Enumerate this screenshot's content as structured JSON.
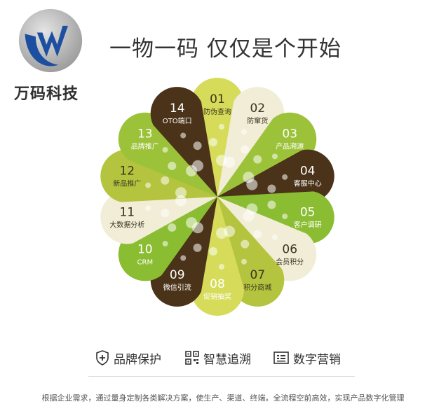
{
  "brand": {
    "name": "万码科技",
    "logo_icon": "wm-logo-icon"
  },
  "headline": "一物一码 仅仅是个开始",
  "petals": [
    {
      "num": "01",
      "label": "防伪查询",
      "color": "#d6dc5a",
      "text_color": "#3b3520"
    },
    {
      "num": "02",
      "label": "防窜货",
      "color": "#f1edd6",
      "text_color": "#3b3520"
    },
    {
      "num": "03",
      "label": "产品溯源",
      "color": "#9cc23a",
      "text_color": "#ffffff"
    },
    {
      "num": "04",
      "label": "客服中心",
      "color": "#4a3318",
      "text_color": "#ffffff"
    },
    {
      "num": "05",
      "label": "客户调研",
      "color": "#8bbd32",
      "text_color": "#ffffff"
    },
    {
      "num": "06",
      "label": "会员积分",
      "color": "#f1edd6",
      "text_color": "#3b3520"
    },
    {
      "num": "07",
      "label": "积分商城",
      "color": "#b5c43e",
      "text_color": "#3b3520"
    },
    {
      "num": "08",
      "label": "促销抽奖",
      "color": "#d6dc5a",
      "text_color": "#ffffff"
    },
    {
      "num": "09",
      "label": "微信引流",
      "color": "#4a3318",
      "text_color": "#ffffff"
    },
    {
      "num": "10",
      "label": "CRM",
      "color": "#8bbd32",
      "text_color": "#ffffff"
    },
    {
      "num": "11",
      "label": "大数据分析",
      "color": "#f1edd6",
      "text_color": "#3b3520"
    },
    {
      "num": "12",
      "label": "新品推广",
      "color": "#b5c43e",
      "text_color": "#3b3520"
    },
    {
      "num": "13",
      "label": "品牌推广",
      "color": "#9cc23a",
      "text_color": "#ffffff"
    },
    {
      "num": "14",
      "label": "OTO端口",
      "color": "#4a3318",
      "text_color": "#ffffff"
    }
  ],
  "features": [
    {
      "label": "品牌保护",
      "icon": "shield-plus-icon"
    },
    {
      "label": "智慧追溯",
      "icon": "qr-code-icon"
    },
    {
      "label": "数字营销",
      "icon": "dotted-panel-icon"
    }
  ],
  "footer": "根据企业需求，通过量身定制各类解决方案，使生产、渠道、终端。全流程空前高效，实现产品数字化管理"
}
